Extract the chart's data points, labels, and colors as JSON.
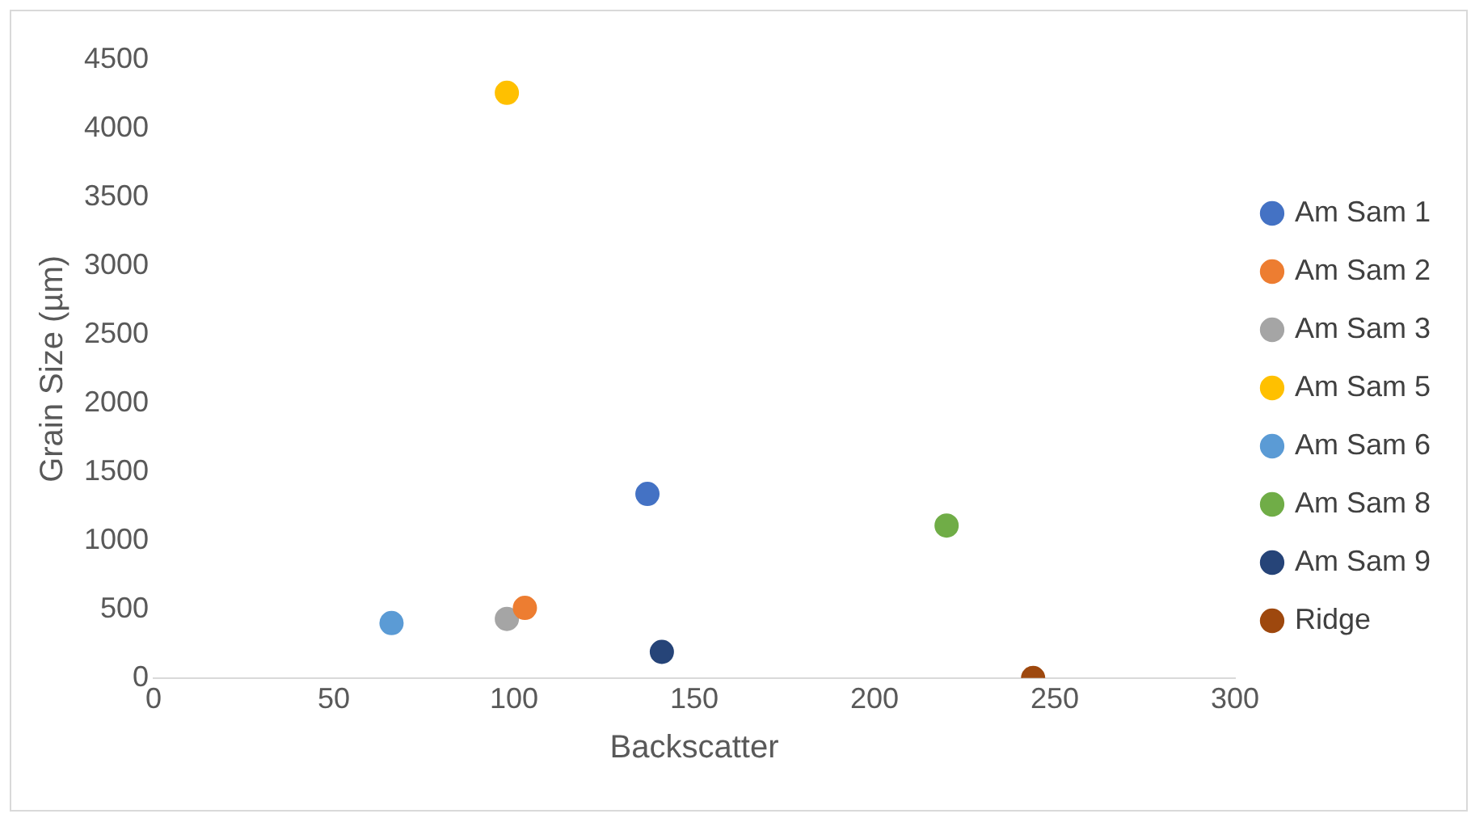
{
  "chart_data": {
    "type": "scatter",
    "xlabel": "Backscatter",
    "ylabel": "Grain Size (µm)",
    "xlim": [
      0,
      300
    ],
    "xticks": [
      0,
      50,
      100,
      150,
      200,
      250,
      300
    ],
    "ylim": [
      0,
      4500
    ],
    "yticks": [
      0,
      500,
      1000,
      1500,
      2000,
      2500,
      3000,
      3500,
      4000,
      4500
    ],
    "grid": false,
    "legend": "right",
    "marker": "circle",
    "series": [
      {
        "name": "Am Sam 1",
        "color": "#4472c4",
        "x": [
          137
        ],
        "values": [
          1340
        ]
      },
      {
        "name": "Am Sam 2",
        "color": "#ed7d31",
        "x": [
          103
        ],
        "values": [
          510
        ]
      },
      {
        "name": "Am Sam 3",
        "color": "#a5a5a5",
        "x": [
          98
        ],
        "values": [
          430
        ]
      },
      {
        "name": "Am Sam 5",
        "color": "#ffc000",
        "x": [
          98
        ],
        "values": [
          4260
        ]
      },
      {
        "name": "Am Sam 6",
        "color": "#5b9bd5",
        "x": [
          66
        ],
        "values": [
          400
        ]
      },
      {
        "name": "Am Sam 8",
        "color": "#70ad47",
        "x": [
          220
        ],
        "values": [
          1110
        ]
      },
      {
        "name": "Am Sam 9",
        "color": "#264478",
        "x": [
          141
        ],
        "values": [
          190
        ]
      },
      {
        "name": "Ridge",
        "color": "#9e480e",
        "x": [
          244
        ],
        "values": [
          0
        ]
      }
    ]
  }
}
